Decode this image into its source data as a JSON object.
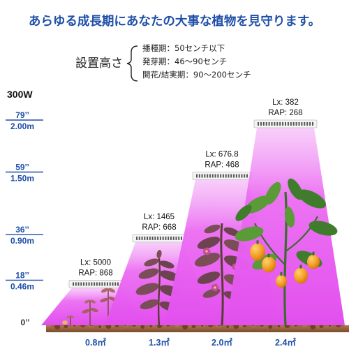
{
  "headline": "あらゆる成長期にあなたの大事な植物を見守ります。",
  "installation": {
    "label": "設置高さ",
    "stages": [
      "播種期：50センチ以下",
      "発芽期：46～90センチ",
      "開花/結実期：90～200センチ"
    ]
  },
  "wattage": "300W",
  "height_scale": {
    "ticks": [
      {
        "inch": "79’’",
        "metric": "2.00m",
        "value_m": 2.0
      },
      {
        "inch": "59’’",
        "metric": "1.50m",
        "value_m": 1.5
      },
      {
        "inch": "36’’",
        "metric": "0.90m",
        "value_m": 0.9
      },
      {
        "inch": "18’’",
        "metric": "0.46m",
        "value_m": 0.46
      }
    ],
    "zero_label": "0’’",
    "max_m": 2.0
  },
  "lamps": [
    {
      "lux": "Lx: 5000",
      "rap": "RAP: 868",
      "area": "0.8㎡",
      "height_m": 0.46,
      "growth": "seedling"
    },
    {
      "lux": "Lx: 1465",
      "rap": "RAP: 668",
      "area": "1.3㎡",
      "height_m": 0.9,
      "growth": "young"
    },
    {
      "lux": "Lx: 676.8",
      "rap": "RAP: 468",
      "area": "2.0㎡",
      "height_m": 1.5,
      "growth": "flowering"
    },
    {
      "lux": "Lx: 382",
      "rap": "RAP: 268",
      "area": "2.4㎡",
      "height_m": 2.0,
      "growth": "fruiting"
    }
  ],
  "colors": {
    "headline": "#1f4fa8",
    "scale": "#1f4fa8",
    "light_beam": "#e95cf0",
    "soil": "#8a5a36",
    "fruit": "#f0a02a"
  }
}
